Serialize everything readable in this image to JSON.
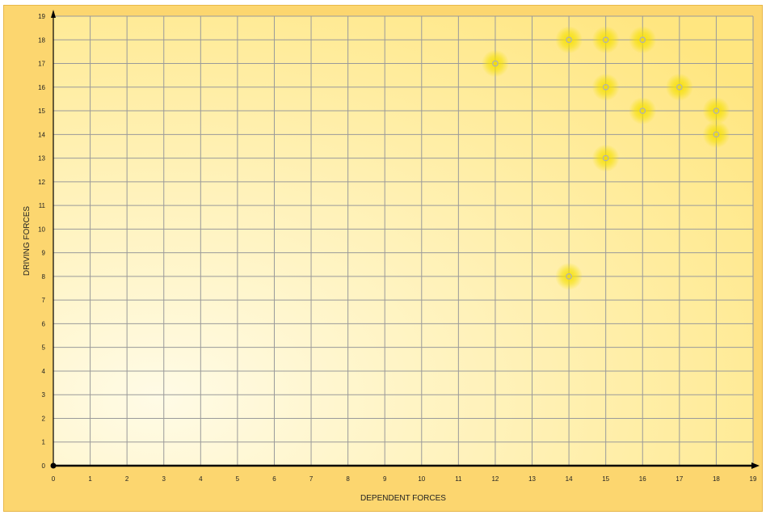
{
  "chart_data": {
    "type": "scatter",
    "xlabel": "DEPENDENT FORCES",
    "ylabel": "DRIVING FORCES",
    "xlim": [
      0,
      19
    ],
    "ylim": [
      0,
      19
    ],
    "x_ticks": [
      "0",
      "1",
      "2",
      "3",
      "4",
      "5",
      "6",
      "7",
      "8",
      "9",
      "10",
      "11",
      "12",
      "13",
      "14",
      "15",
      "16",
      "17",
      "18",
      "19"
    ],
    "y_ticks": [
      "0",
      "1",
      "2",
      "3",
      "4",
      "5",
      "6",
      "7",
      "8",
      "9",
      "10",
      "11",
      "12",
      "13",
      "14",
      "15",
      "16",
      "17",
      "18",
      "19"
    ],
    "grid": true,
    "points": [
      {
        "x": 12,
        "y": 17
      },
      {
        "x": 14,
        "y": 18
      },
      {
        "x": 15,
        "y": 18
      },
      {
        "x": 16,
        "y": 18
      },
      {
        "x": 15,
        "y": 16
      },
      {
        "x": 17,
        "y": 16
      },
      {
        "x": 16,
        "y": 15
      },
      {
        "x": 18,
        "y": 15
      },
      {
        "x": 18,
        "y": 14
      },
      {
        "x": 15,
        "y": 13
      },
      {
        "x": 14,
        "y": 8
      }
    ],
    "colors": {
      "frame": "#fcd66f",
      "plot_bg_light": "#fffbe6",
      "plot_bg_dark": "#ffe680",
      "grid": "#9a9a9a",
      "axis": "#000000",
      "marker_glow": "#f5e000",
      "marker": "#b0b0b0"
    }
  }
}
